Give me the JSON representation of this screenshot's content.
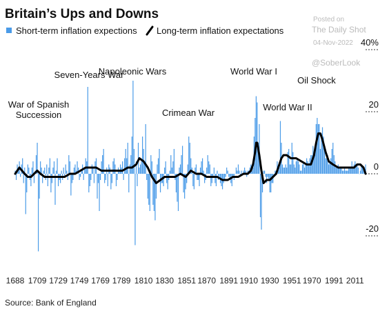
{
  "chart_data": {
    "type": "bar",
    "title": "Britain’s Ups and Downs",
    "source": "Source: Bank of England",
    "watermark": [
      "Posted on",
      "The Daily Shot",
      "04-Nov-2022",
      "@SoberLook"
    ],
    "annotations": [
      "War of Spanish Succession",
      "Seven-Years War",
      "Napoleonic Wars",
      "Crimean War",
      "World War I",
      "World War II",
      "Oil Shock"
    ],
    "xlim": [
      1686,
      2022
    ],
    "xticks": [
      1688,
      1709,
      1729,
      1749,
      1769,
      1789,
      1810,
      1830,
      1851,
      1870,
      1891,
      1910,
      1930,
      1951,
      1970,
      1991,
      2011
    ],
    "ylim": [
      -26,
      43
    ],
    "yticks": [
      {
        "value": 40,
        "label": "40%"
      },
      20,
      0,
      -20
    ],
    "grid": false,
    "x": [
      1688,
      1689,
      1690,
      1691,
      1692,
      1693,
      1694,
      1695,
      1696,
      1697,
      1698,
      1699,
      1700,
      1701,
      1702,
      1703,
      1704,
      1705,
      1706,
      1707,
      1708,
      1709,
      1710,
      1711,
      1712,
      1713,
      1714,
      1715,
      1716,
      1717,
      1718,
      1719,
      1720,
      1721,
      1722,
      1723,
      1724,
      1725,
      1726,
      1727,
      1728,
      1729,
      1730,
      1731,
      1732,
      1733,
      1734,
      1735,
      1736,
      1737,
      1738,
      1739,
      1740,
      1741,
      1742,
      1743,
      1744,
      1745,
      1746,
      1747,
      1748,
      1749,
      1750,
      1751,
      1752,
      1753,
      1754,
      1755,
      1756,
      1757,
      1758,
      1759,
      1760,
      1761,
      1762,
      1763,
      1764,
      1765,
      1766,
      1767,
      1768,
      1769,
      1770,
      1771,
      1772,
      1773,
      1774,
      1775,
      1776,
      1777,
      1778,
      1779,
      1780,
      1781,
      1782,
      1783,
      1784,
      1785,
      1786,
      1787,
      1788,
      1789,
      1790,
      1791,
      1792,
      1793,
      1794,
      1795,
      1796,
      1797,
      1798,
      1799,
      1800,
      1801,
      1802,
      1803,
      1804,
      1805,
      1806,
      1807,
      1808,
      1809,
      1810,
      1811,
      1812,
      1813,
      1814,
      1815,
      1816,
      1817,
      1818,
      1819,
      1820,
      1821,
      1822,
      1823,
      1824,
      1825,
      1826,
      1827,
      1828,
      1829,
      1830,
      1831,
      1832,
      1833,
      1834,
      1835,
      1836,
      1837,
      1838,
      1839,
      1840,
      1841,
      1842,
      1843,
      1844,
      1845,
      1846,
      1847,
      1848,
      1849,
      1850,
      1851,
      1852,
      1853,
      1854,
      1855,
      1856,
      1857,
      1858,
      1859,
      1860,
      1861,
      1862,
      1863,
      1864,
      1865,
      1866,
      1867,
      1868,
      1869,
      1870,
      1871,
      1872,
      1873,
      1874,
      1875,
      1876,
      1877,
      1878,
      1879,
      1880,
      1881,
      1882,
      1883,
      1884,
      1885,
      1886,
      1887,
      1888,
      1889,
      1890,
      1891,
      1892,
      1893,
      1894,
      1895,
      1896,
      1897,
      1898,
      1899,
      1900,
      1901,
      1902,
      1903,
      1904,
      1905,
      1906,
      1907,
      1908,
      1909,
      1910,
      1911,
      1912,
      1913,
      1914,
      1915,
      1916,
      1917,
      1918,
      1919,
      1920,
      1921,
      1922,
      1923,
      1924,
      1925,
      1926,
      1927,
      1928,
      1929,
      1930,
      1931,
      1932,
      1933,
      1934,
      1935,
      1936,
      1937,
      1938,
      1939,
      1940,
      1941,
      1942,
      1943,
      1944,
      1945,
      1946,
      1947,
      1948,
      1949,
      1950,
      1951,
      1952,
      1953,
      1954,
      1955,
      1956,
      1957,
      1958,
      1959,
      1960,
      1961,
      1962,
      1963,
      1964,
      1965,
      1966,
      1967,
      1968,
      1969,
      1970,
      1971,
      1972,
      1973,
      1974,
      1975,
      1976,
      1977,
      1978,
      1979,
      1980,
      1981,
      1982,
      1983,
      1984,
      1985,
      1986,
      1987,
      1988,
      1989,
      1990,
      1991,
      1992,
      1993,
      1994,
      1995,
      1996,
      1997,
      1998,
      1999,
      2000,
      2001,
      2002,
      2003,
      2004,
      2005,
      2006,
      2007,
      2008,
      2009,
      2010,
      2011,
      2012,
      2013,
      2014,
      2015,
      2016,
      2017,
      2018,
      2019,
      2020,
      2021
    ],
    "series": [
      {
        "name": "Short-term inflation expections",
        "type": "bar",
        "color": "#4a9be8",
        "values": [
          1,
          -2,
          3,
          2,
          4,
          -1,
          3,
          5,
          -3,
          2,
          -13,
          -6,
          3,
          2,
          -2,
          -4,
          2,
          4,
          -3,
          1,
          6,
          10,
          -25,
          -8,
          4,
          2,
          -3,
          1,
          2,
          -2,
          3,
          -4,
          2,
          5,
          -6,
          -3,
          2,
          4,
          -10,
          1,
          5,
          -4,
          -2,
          -3,
          1,
          -2,
          2,
          -1,
          3,
          1,
          -2,
          6,
          4,
          -7,
          -3,
          -2,
          2,
          3,
          1,
          4,
          2,
          -2,
          -1,
          1,
          3,
          -2,
          2,
          5,
          4,
          28,
          -6,
          -4,
          -2,
          3,
          2,
          -3,
          4,
          5,
          -8,
          -3,
          -12,
          -2,
          4,
          6,
          8,
          -3,
          -2,
          2,
          -4,
          3,
          2,
          -5,
          -3,
          4,
          5,
          3,
          -4,
          -2,
          2,
          1,
          3,
          2,
          4,
          -2,
          5,
          8,
          5,
          10,
          -6,
          3,
          6,
          12,
          30,
          8,
          -23,
          4,
          -4,
          10,
          2,
          3,
          4,
          12,
          8,
          4,
          16,
          -2,
          -8,
          -10,
          -12,
          6,
          4,
          -10,
          -12,
          -15,
          -8,
          3,
          5,
          8,
          -6,
          -3,
          -3,
          -4,
          2,
          4,
          -3,
          -5,
          -2,
          1,
          6,
          2,
          4,
          8,
          -2,
          -6,
          -9,
          -12,
          2,
          3,
          6,
          9,
          -6,
          -8,
          -5,
          -3,
          3,
          12,
          10,
          5,
          2,
          -4,
          -5,
          2,
          3,
          -2,
          -2,
          -4,
          2,
          4,
          5,
          1,
          -3,
          -2,
          2,
          6,
          4,
          3,
          -4,
          -3,
          -1,
          2,
          -3,
          -4,
          1,
          -2,
          -1,
          -3,
          -4,
          -5,
          -3,
          -2,
          -1,
          2,
          1,
          -1,
          -2,
          -3,
          -4,
          -1,
          -2,
          0,
          2,
          1,
          3,
          1,
          -1,
          1,
          0,
          1,
          2,
          1,
          -1,
          1,
          1,
          2,
          3,
          1,
          2,
          12,
          18,
          25,
          23,
          10,
          16,
          -14,
          -18,
          -6,
          1,
          1,
          -1,
          -3,
          -1,
          -2,
          -6,
          -6,
          -3,
          -3,
          0,
          1,
          1,
          4,
          2,
          3,
          17,
          10,
          3,
          2,
          2,
          3,
          2,
          7,
          8,
          3,
          3,
          10,
          7,
          3,
          2,
          4,
          5,
          4,
          3,
          1,
          1,
          3,
          4,
          2,
          3,
          5,
          4,
          3,
          5,
          6,
          6,
          9,
          7,
          9,
          16,
          18,
          16,
          16,
          8,
          13,
          15,
          12,
          9,
          5,
          5,
          6,
          3,
          4,
          5,
          8,
          10,
          6,
          4,
          2,
          2,
          3,
          2,
          2,
          2,
          1,
          1,
          2,
          1,
          1,
          1,
          2,
          2,
          2,
          4,
          2,
          3,
          4,
          3,
          3,
          2,
          0,
          1,
          3,
          2,
          2,
          1,
          3
        ]
      },
      {
        "name": "Long-term inflation expectations",
        "type": "line",
        "color": "#000000",
        "x": [
          1688,
          1692,
          1697,
          1700,
          1703,
          1706,
          1709,
          1712,
          1716,
          1720,
          1725,
          1730,
          1735,
          1740,
          1745,
          1750,
          1755,
          1760,
          1765,
          1770,
          1775,
          1780,
          1785,
          1790,
          1795,
          1799,
          1803,
          1806,
          1810,
          1814,
          1818,
          1822,
          1826,
          1830,
          1835,
          1840,
          1845,
          1850,
          1855,
          1860,
          1865,
          1870,
          1875,
          1880,
          1885,
          1890,
          1895,
          1900,
          1905,
          1909,
          1912,
          1914,
          1916,
          1917,
          1918,
          1920,
          1922,
          1924,
          1927,
          1930,
          1933,
          1936,
          1939,
          1941,
          1943,
          1946,
          1950,
          1955,
          1960,
          1965,
          1969,
          1972,
          1974,
          1976,
          1978,
          1980,
          1983,
          1986,
          1990,
          1995,
          2000,
          2005,
          2010,
          2013,
          2016,
          2019,
          2021
        ],
        "values": [
          0,
          2,
          0,
          -1,
          -1,
          0,
          1,
          0,
          -1,
          -1,
          -1,
          -1,
          -1,
          0,
          0,
          1,
          2,
          2,
          2,
          1,
          1,
          1,
          1,
          1,
          2,
          2,
          3,
          5,
          4,
          2,
          -1,
          -3,
          -2,
          -1,
          -1,
          -1,
          0,
          -1,
          1,
          0,
          0,
          -1,
          -1,
          -1,
          -2,
          -2,
          -1,
          -1,
          0,
          0,
          1,
          3,
          7,
          10,
          10,
          6,
          1,
          -3,
          -2,
          -2,
          -1,
          0,
          3,
          5,
          6,
          6,
          5,
          5,
          4,
          3,
          3,
          6,
          10,
          13,
          13,
          11,
          7,
          4,
          3,
          2,
          2,
          2,
          2,
          3,
          3,
          2,
          0
        ]
      }
    ]
  }
}
